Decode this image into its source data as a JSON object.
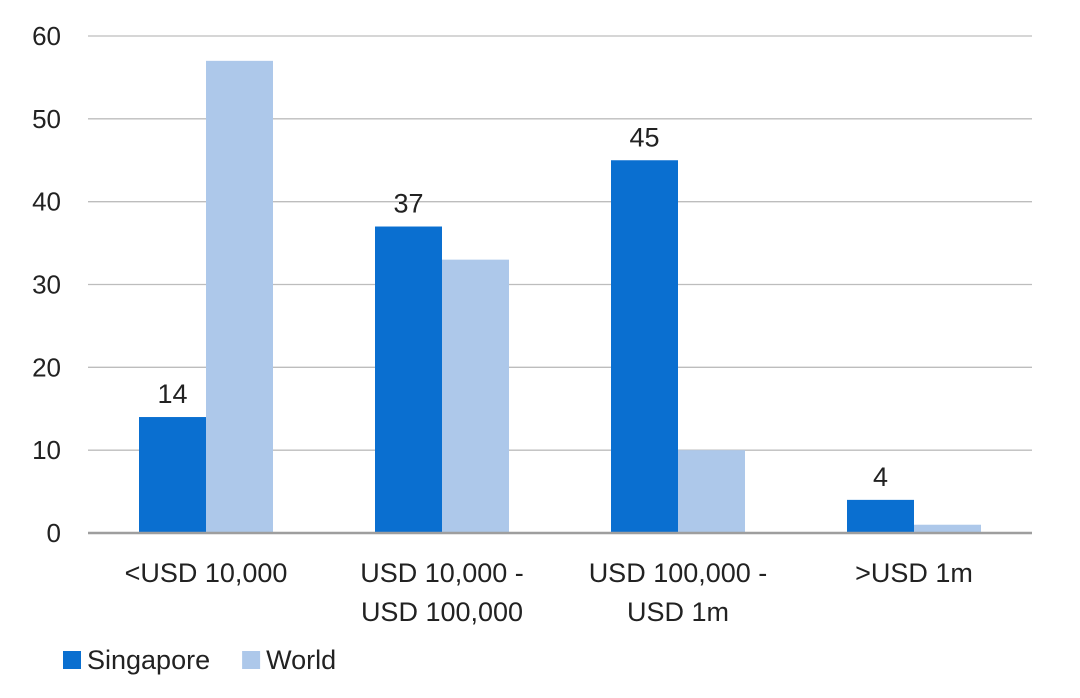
{
  "chart_data": {
    "type": "bar",
    "categories": [
      [
        "<USD 10,000"
      ],
      [
        "USD 10,000 -",
        "USD 100,000"
      ],
      [
        "USD 100,000 -",
        "USD 1m"
      ],
      [
        ">USD 1m"
      ]
    ],
    "series": [
      {
        "name": "Singapore",
        "color": "#0A6FD0",
        "values": [
          14,
          37,
          45,
          4
        ],
        "data_labels": [
          "14",
          "37",
          "45",
          "4"
        ]
      },
      {
        "name": "World",
        "color": "#ADC8EA",
        "values": [
          57,
          33,
          10,
          1
        ]
      }
    ],
    "ylim": [
      0,
      60
    ],
    "yticks": [
      0,
      10,
      20,
      30,
      40,
      50,
      60
    ],
    "grid": true,
    "legend": "bottom-left"
  }
}
